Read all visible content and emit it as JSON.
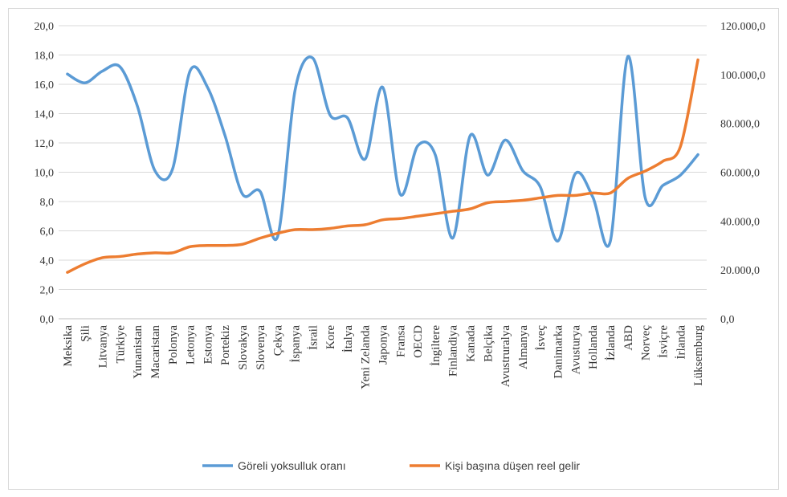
{
  "chart_data": {
    "type": "line",
    "categories": [
      "Meksika",
      "Şili",
      "Litvanya",
      "Türkiye",
      "Yunanistan",
      "Macaristan",
      "Polonya",
      "Letonya",
      "Estonya",
      "Portekiz",
      "Slovakya",
      "Slovenya",
      "Çekya",
      "İspanya",
      "İsrail",
      "Kore",
      "İtalya",
      "Yeni Zelanda",
      "Japonya",
      "Fransa",
      "OECD",
      "İngiltere",
      "Finlandiya",
      "Kanada",
      "Belçika",
      "Avustruralya",
      "Almanya",
      "İsveç",
      "Danimarka",
      "Avusturya",
      "Hollanda",
      "İzlanda",
      "ABD",
      "Norveç",
      "İsviçre",
      "İrlanda",
      "Lüksemburg"
    ],
    "series": [
      {
        "name": "Göreli yoksulluk oranı",
        "axis": "left",
        "color": "#5b9bd5",
        "values": [
          16.7,
          16.1,
          16.9,
          17.2,
          14.5,
          10.1,
          10.2,
          16.9,
          15.8,
          12.5,
          8.5,
          8.7,
          5.6,
          15.6,
          17.8,
          13.9,
          13.7,
          10.9,
          15.8,
          8.5,
          11.8,
          11.2,
          5.5,
          12.5,
          9.8,
          12.2,
          10.1,
          9.0,
          5.3,
          9.9,
          8.3,
          5.3,
          17.9,
          8.2,
          9.1,
          9.8,
          11.2
        ]
      },
      {
        "name": "Kişi başına düşen reel gelir",
        "axis": "right",
        "color": "#ed7d31",
        "values": [
          19000,
          22500,
          25000,
          25500,
          26500,
          27000,
          27000,
          29500,
          30000,
          30000,
          30500,
          33000,
          35000,
          36500,
          36500,
          37000,
          38000,
          38500,
          40500,
          41000,
          42000,
          43000,
          44000,
          45000,
          47500,
          48000,
          48500,
          49500,
          50500,
          50500,
          51500,
          51500,
          57500,
          60500,
          64500,
          70500,
          106000
        ]
      }
    ],
    "left_axis": {
      "min": 0,
      "max": 20,
      "step": 2,
      "tick_labels": [
        "0,0",
        "2,0",
        "4,0",
        "6,0",
        "8,0",
        "10,0",
        "12,0",
        "14,0",
        "16,0",
        "18,0",
        "20,0"
      ]
    },
    "right_axis": {
      "min": 0,
      "max": 120000,
      "step": 20000,
      "tick_labels": [
        "0,0",
        "20.000,0",
        "40.000,0",
        "60.000,0",
        "80.000,0",
        "100.000,0",
        "120.000,0"
      ]
    },
    "grid": true,
    "legend_position": "bottom"
  },
  "legend": {
    "series1": "Göreli yoksulluk oranı",
    "series2": "Kişi başına düşen reel gelir"
  }
}
